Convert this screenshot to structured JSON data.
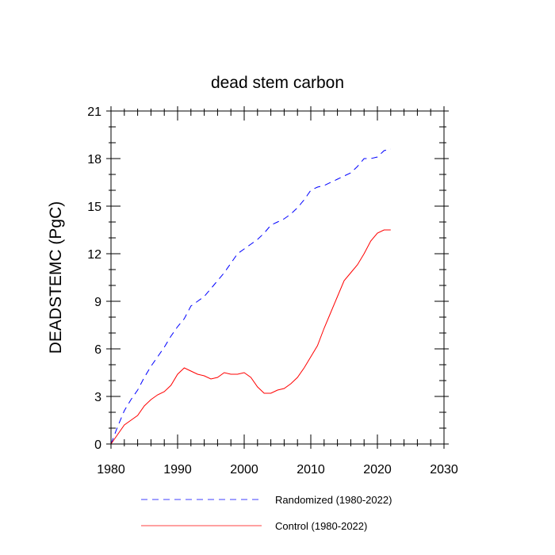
{
  "chart_data": {
    "type": "line",
    "title": "dead stem carbon",
    "xlabel": "",
    "ylabel": "DEADSTEMC  (PgC)",
    "xlim": [
      1980,
      2030
    ],
    "ylim": [
      0,
      21
    ],
    "xticks": [
      1980,
      1990,
      2000,
      2010,
      2020,
      2030
    ],
    "yticks": [
      0,
      3,
      6,
      9,
      12,
      15,
      18,
      21
    ],
    "xtick_labels": [
      "1980",
      "1990",
      "2000",
      "2010",
      "2020",
      "2030"
    ],
    "ytick_labels": [
      "0",
      "3",
      "6",
      "9",
      "12",
      "15",
      "18",
      "21"
    ],
    "x": [
      1980,
      1981,
      1982,
      1983,
      1984,
      1985,
      1986,
      1987,
      1988,
      1989,
      1990,
      1991,
      1992,
      1993,
      1994,
      1995,
      1996,
      1997,
      1998,
      1999,
      2000,
      2001,
      2002,
      2003,
      2004,
      2005,
      2006,
      2007,
      2008,
      2009,
      2010,
      2011,
      2012,
      2013,
      2014,
      2015,
      2016,
      2017,
      2018,
      2019,
      2020,
      2021,
      2022
    ],
    "series": [
      {
        "name": "Randomized (1980-2022)",
        "color": "#0000ff",
        "dash": "dashed",
        "values": [
          0.0,
          1.1,
          2.1,
          2.8,
          3.4,
          4.2,
          4.9,
          5.5,
          6.1,
          6.8,
          7.4,
          7.9,
          8.7,
          9.0,
          9.3,
          9.8,
          10.3,
          10.8,
          11.4,
          12.0,
          12.3,
          12.6,
          12.9,
          13.3,
          13.8,
          14.0,
          14.2,
          14.5,
          14.9,
          15.4,
          16.0,
          16.2,
          16.3,
          16.5,
          16.7,
          16.9,
          17.1,
          17.5,
          18.0,
          18.0,
          18.1,
          18.5,
          18.6
        ]
      },
      {
        "name": "Control (1980-2022)",
        "color": "#ff0000",
        "dash": "solid",
        "values": [
          0.0,
          0.6,
          1.2,
          1.5,
          1.8,
          2.4,
          2.8,
          3.1,
          3.3,
          3.7,
          4.4,
          4.8,
          4.6,
          4.4,
          4.3,
          4.1,
          4.2,
          4.5,
          4.4,
          4.4,
          4.5,
          4.2,
          3.6,
          3.2,
          3.2,
          3.4,
          3.5,
          3.8,
          4.2,
          4.8,
          5.5,
          6.2,
          7.3,
          8.3,
          9.3,
          10.3,
          10.8,
          11.3,
          12.0,
          12.8,
          13.3,
          13.5,
          13.5
        ]
      }
    ]
  }
}
